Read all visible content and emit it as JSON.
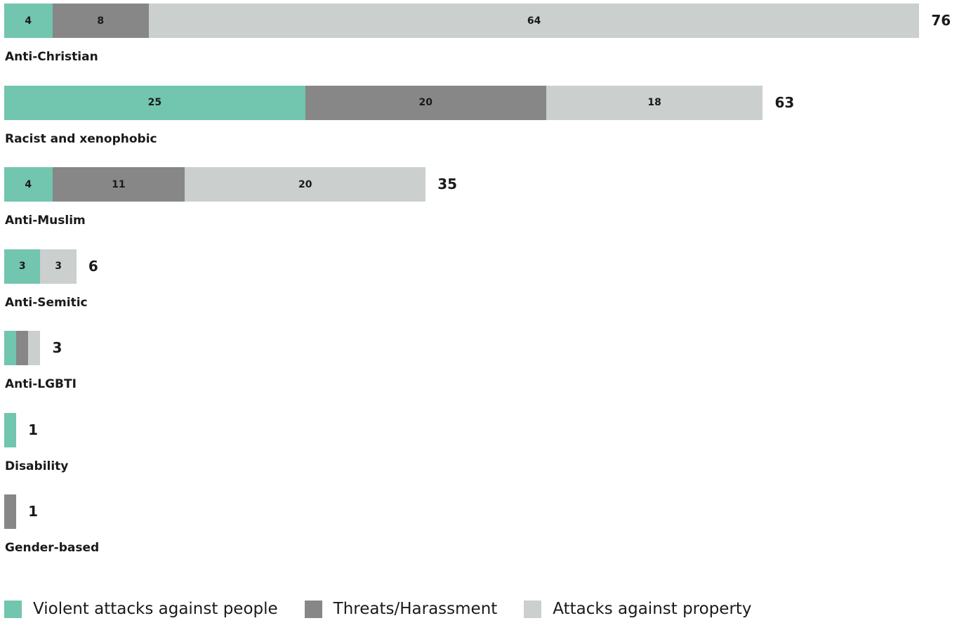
{
  "chart_data": {
    "type": "bar",
    "orientation": "horizontal",
    "stacked": true,
    "categories": [
      "Anti-Christian",
      "Racist and xenophobic",
      "Anti-Muslim",
      "Anti-Semitic",
      "Anti-LGBTI",
      "Disability",
      "Gender-based"
    ],
    "series": [
      {
        "name": "Violent attacks against people",
        "color": "#72c5ae",
        "values": [
          4,
          25,
          4,
          3,
          1,
          1,
          0
        ],
        "labels": [
          "4",
          "25",
          "4",
          "3",
          "",
          "",
          ""
        ]
      },
      {
        "name": "Threats/Harassment",
        "color": "#878787",
        "values": [
          8,
          20,
          11,
          0,
          1,
          0,
          1
        ],
        "labels": [
          "8",
          "20",
          "11",
          "",
          "",
          "",
          ""
        ]
      },
      {
        "name": "Attacks against property",
        "color": "#cbcfce",
        "values": [
          64,
          18,
          20,
          3,
          1,
          0,
          0
        ],
        "labels": [
          "64",
          "18",
          "20",
          "3",
          "",
          "",
          ""
        ]
      }
    ],
    "totals": [
      "76",
      "63",
      "35",
      "6",
      "3",
      "1",
      "1"
    ],
    "legend_position": "bottom-left"
  }
}
